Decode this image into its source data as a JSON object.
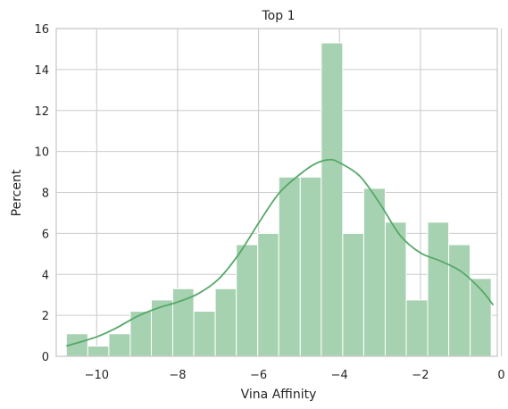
{
  "chart_data": {
    "type": "bar",
    "title": "Top 1",
    "xlabel": "Vina Affinity",
    "ylabel": "Percent",
    "xlim": [
      -11.0,
      -0.1
    ],
    "ylim": [
      0,
      16
    ],
    "x_ticks": [
      -10,
      -8,
      -6,
      -4,
      -2,
      0
    ],
    "x_tick_labels": [
      "−10",
      "−8",
      "−6",
      "−4",
      "−2",
      "0"
    ],
    "y_ticks": [
      0,
      2,
      4,
      6,
      8,
      10,
      12,
      14,
      16
    ],
    "grid": true,
    "bins": [
      {
        "x0": -10.75,
        "x1": -10.22,
        "value": 1.1
      },
      {
        "x0": -10.22,
        "x1": -9.7,
        "value": 0.5
      },
      {
        "x0": -9.7,
        "x1": -9.17,
        "value": 1.1
      },
      {
        "x0": -9.17,
        "x1": -8.65,
        "value": 2.2
      },
      {
        "x0": -8.65,
        "x1": -8.12,
        "value": 2.75
      },
      {
        "x0": -8.12,
        "x1": -7.6,
        "value": 3.3
      },
      {
        "x0": -7.6,
        "x1": -7.07,
        "value": 2.2
      },
      {
        "x0": -7.07,
        "x1": -6.55,
        "value": 3.3
      },
      {
        "x0": -6.55,
        "x1": -6.02,
        "value": 5.45
      },
      {
        "x0": -6.02,
        "x1": -5.5,
        "value": 6.0
      },
      {
        "x0": -5.5,
        "x1": -4.97,
        "value": 8.75
      },
      {
        "x0": -4.97,
        "x1": -4.45,
        "value": 8.75
      },
      {
        "x0": -4.45,
        "x1": -3.92,
        "value": 15.3
      },
      {
        "x0": -3.92,
        "x1": -3.4,
        "value": 6.0
      },
      {
        "x0": -3.4,
        "x1": -2.87,
        "value": 8.2
      },
      {
        "x0": -2.87,
        "x1": -2.35,
        "value": 6.55
      },
      {
        "x0": -2.35,
        "x1": -1.82,
        "value": 2.75
      },
      {
        "x0": -1.82,
        "x1": -1.3,
        "value": 6.55
      },
      {
        "x0": -1.3,
        "x1": -0.77,
        "value": 5.45
      },
      {
        "x0": -0.77,
        "x1": -0.25,
        "value": 3.8
      }
    ],
    "kde": {
      "x": [
        -10.75,
        -10.0,
        -9.5,
        -9.0,
        -8.5,
        -8.0,
        -7.5,
        -7.0,
        -6.5,
        -6.0,
        -5.5,
        -5.0,
        -4.6,
        -4.25,
        -4.0,
        -3.5,
        -3.0,
        -2.5,
        -2.0,
        -1.5,
        -1.0,
        -0.5,
        -0.2
      ],
      "y": [
        0.5,
        0.95,
        1.4,
        1.95,
        2.35,
        2.65,
        3.05,
        3.75,
        4.95,
        6.5,
        7.95,
        8.85,
        9.4,
        9.6,
        9.45,
        8.8,
        7.45,
        5.9,
        5.05,
        4.65,
        4.15,
        3.25,
        2.5
      ]
    },
    "colors": {
      "bar_fill": "#a7d2b1",
      "bar_edge": "#ffffff",
      "kde_line": "#55a868",
      "grid": "#cccccc",
      "spine": "#cccccc"
    }
  }
}
